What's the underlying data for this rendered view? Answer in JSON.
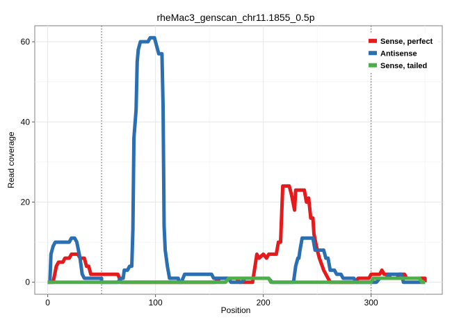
{
  "chart_data": {
    "type": "line",
    "title": "rheMac3_genscan_chr11.1855_0.5p",
    "xlabel": "Position",
    "ylabel": "Read coverage",
    "xlim": [
      -12,
      366
    ],
    "ylim": [
      -3,
      64
    ],
    "xticks": [
      0,
      100,
      200,
      300
    ],
    "yticks": [
      0,
      20,
      40,
      60
    ],
    "grid": true,
    "legend_position": "top-right",
    "vlines": [
      50,
      300
    ],
    "series": [
      {
        "name": "Sense, perfect",
        "color": "#e41a1c",
        "points": [
          [
            0,
            0
          ],
          [
            5,
            0
          ],
          [
            8,
            4
          ],
          [
            10,
            5
          ],
          [
            14,
            5
          ],
          [
            16,
            6
          ],
          [
            20,
            6
          ],
          [
            22,
            7
          ],
          [
            28,
            7
          ],
          [
            30,
            6
          ],
          [
            34,
            6
          ],
          [
            36,
            4
          ],
          [
            38,
            4
          ],
          [
            40,
            2
          ],
          [
            62,
            2
          ],
          [
            65,
            2
          ],
          [
            68,
            0
          ],
          [
            130,
            0
          ],
          [
            155,
            0
          ],
          [
            160,
            1
          ],
          [
            175,
            1
          ],
          [
            178,
            0
          ],
          [
            190,
            0
          ],
          [
            194,
            7
          ],
          [
            196,
            6
          ],
          [
            200,
            7
          ],
          [
            203,
            6
          ],
          [
            205,
            7
          ],
          [
            212,
            7
          ],
          [
            214,
            10
          ],
          [
            216,
            10
          ],
          [
            218,
            24
          ],
          [
            224,
            24
          ],
          [
            226,
            22
          ],
          [
            229,
            18
          ],
          [
            230,
            23
          ],
          [
            238,
            23
          ],
          [
            240,
            20
          ],
          [
            242,
            21
          ],
          [
            244,
            16
          ],
          [
            246,
            16
          ],
          [
            247,
            12
          ],
          [
            250,
            8
          ],
          [
            252,
            6
          ],
          [
            256,
            3
          ],
          [
            258,
            2
          ],
          [
            262,
            0
          ],
          [
            285,
            0
          ],
          [
            288,
            1
          ],
          [
            298,
            1
          ],
          [
            300,
            2
          ],
          [
            308,
            2
          ],
          [
            310,
            3
          ],
          [
            312,
            2
          ],
          [
            316,
            2
          ],
          [
            318,
            1
          ],
          [
            324,
            1
          ],
          [
            326,
            2
          ],
          [
            331,
            2
          ],
          [
            333,
            1
          ],
          [
            350,
            1
          ],
          [
            350,
            0
          ]
        ]
      },
      {
        "name": "Antisense",
        "color": "#2b6fb1",
        "points": [
          [
            0,
            0
          ],
          [
            2,
            0
          ],
          [
            3,
            7
          ],
          [
            5,
            9
          ],
          [
            7,
            10
          ],
          [
            20,
            10
          ],
          [
            22,
            11
          ],
          [
            25,
            11
          ],
          [
            27,
            10
          ],
          [
            30,
            6
          ],
          [
            32,
            2
          ],
          [
            34,
            1
          ],
          [
            50,
            1
          ],
          [
            50,
            0
          ],
          [
            65,
            0
          ],
          [
            68,
            1
          ],
          [
            70,
            1
          ],
          [
            71,
            3
          ],
          [
            74,
            3
          ],
          [
            76,
            4
          ],
          [
            78,
            4
          ],
          [
            79,
            13
          ],
          [
            80,
            36
          ],
          [
            82,
            43
          ],
          [
            83,
            55
          ],
          [
            84,
            58
          ],
          [
            86,
            60
          ],
          [
            93,
            60
          ],
          [
            95,
            61
          ],
          [
            99,
            61
          ],
          [
            101,
            59
          ],
          [
            103,
            57
          ],
          [
            106,
            57
          ],
          [
            107,
            44
          ],
          [
            108,
            14
          ],
          [
            109,
            8
          ],
          [
            111,
            4
          ],
          [
            113,
            1
          ],
          [
            121,
            1
          ],
          [
            122,
            0
          ],
          [
            124,
            0
          ],
          [
            127,
            2
          ],
          [
            152,
            2
          ],
          [
            154,
            1
          ],
          [
            168,
            1
          ],
          [
            170,
            0
          ],
          [
            180,
            0
          ],
          [
            183,
            1
          ],
          [
            205,
            1
          ],
          [
            208,
            0
          ],
          [
            228,
            0
          ],
          [
            230,
            4
          ],
          [
            232,
            6
          ],
          [
            233,
            6
          ],
          [
            234,
            8
          ],
          [
            236,
            11
          ],
          [
            246,
            11
          ],
          [
            248,
            8
          ],
          [
            256,
            8
          ],
          [
            258,
            6
          ],
          [
            260,
            6
          ],
          [
            262,
            3
          ],
          [
            266,
            3
          ],
          [
            268,
            2
          ],
          [
            272,
            2
          ],
          [
            274,
            1
          ],
          [
            284,
            1
          ],
          [
            286,
            0
          ],
          [
            305,
            0
          ],
          [
            308,
            1
          ],
          [
            314,
            1
          ],
          [
            316,
            2
          ],
          [
            328,
            2
          ],
          [
            330,
            0
          ],
          [
            350,
            0
          ]
        ]
      },
      {
        "name": "Sense, tailed",
        "color": "#4daf4a",
        "points": [
          [
            0,
            0
          ],
          [
            165,
            0
          ],
          [
            168,
            1
          ],
          [
            205,
            1
          ],
          [
            207,
            0
          ],
          [
            300,
            0
          ],
          [
            302,
            1
          ],
          [
            345,
            1
          ],
          [
            347,
            0
          ],
          [
            350,
            0
          ]
        ]
      }
    ]
  }
}
